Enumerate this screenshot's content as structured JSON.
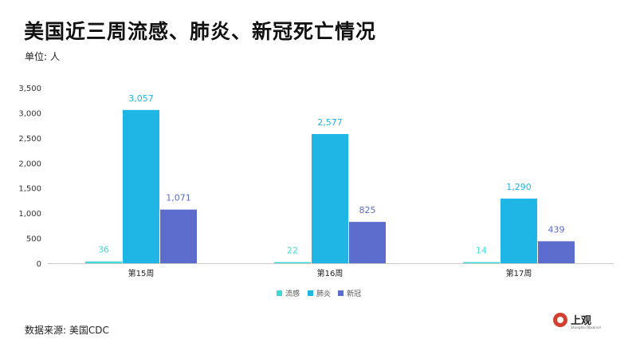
{
  "title": "美国近三周流感、肺炎、新冠死亡情况",
  "unit_label": "单位: 人",
  "source_label": "数据来源: 美国CDC",
  "logo": {
    "name": "上观",
    "subtitle": "Shanghai Observer"
  },
  "colors": {
    "flu": "#3ed8d8",
    "pneumonia": "#1fb6e6",
    "covid": "#5b6ccc",
    "axis_text": "#333333",
    "gridline": "#e6e6e6"
  },
  "chart_data": {
    "type": "bar",
    "categories": [
      "第15周",
      "第16周",
      "第17周"
    ],
    "series": [
      {
        "name": "流感",
        "values": [
          36,
          22,
          14
        ],
        "value_labels": [
          "36",
          "22",
          "14"
        ],
        "color": "#3ed8d8"
      },
      {
        "name": "肺炎",
        "values": [
          3057,
          2577,
          1290
        ],
        "value_labels": [
          "3,057",
          "2,577",
          "1,290"
        ],
        "color": "#1fb6e6"
      },
      {
        "name": "新冠",
        "values": [
          1071,
          825,
          439
        ],
        "value_labels": [
          "1,071",
          "825",
          "439"
        ],
        "color": "#5b6ccc"
      }
    ],
    "yticks": [
      "0",
      "500",
      "1,000",
      "1,500",
      "2,000",
      "2,500",
      "3,000",
      "3,500"
    ],
    "ylim": [
      0,
      3500
    ],
    "grid": false,
    "legend_position": "bottom-center"
  }
}
